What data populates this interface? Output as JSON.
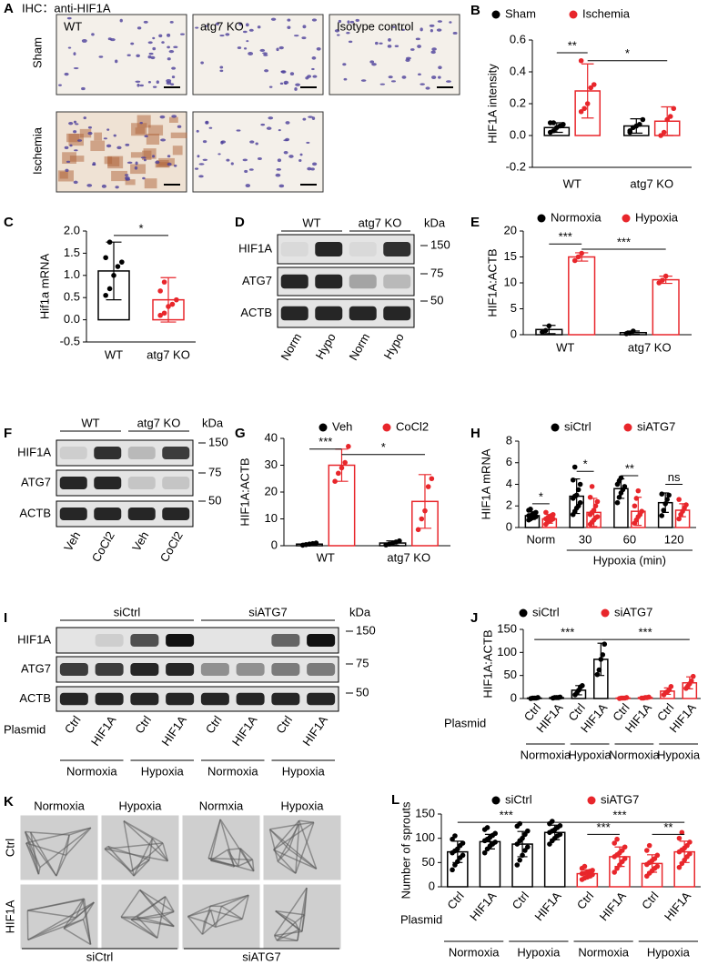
{
  "panels": {
    "a": {
      "letter": "A",
      "title": "IHC：anti-HIF1A",
      "row_labels": [
        "Sham",
        "Ischemia"
      ],
      "image_labels": [
        "WT",
        "atg7 KO",
        "Isotype  control"
      ]
    },
    "d": {
      "letter": "D",
      "groups": [
        "WT",
        "atg7 KO"
      ],
      "unit": "kDa",
      "rows": [
        "HIF1A",
        "ATG7",
        "ACTB"
      ],
      "markers": [
        150,
        75,
        50
      ],
      "lanes": [
        "Norm",
        "Hypo",
        "Norm",
        "Hypo"
      ]
    },
    "f": {
      "letter": "F",
      "groups": [
        "WT",
        "atg7 KO"
      ],
      "unit": "kDa",
      "rows": [
        "HIF1A",
        "ATG7",
        "ACTB"
      ],
      "markers": [
        150,
        75,
        50
      ],
      "lanes": [
        "Veh",
        "CoCl2",
        "Veh",
        "CoCl2"
      ]
    },
    "i": {
      "letter": "I",
      "groups": [
        "siCtrl",
        "siATG7"
      ],
      "unit": "kDa",
      "rows": [
        "HIF1A",
        "ATG7",
        "ACTB"
      ],
      "markers": [
        150,
        75,
        50
      ],
      "lanes": [
        "Ctrl",
        "HIF1A",
        "Ctrl",
        "HIF1A",
        "Ctrl",
        "HIF1A",
        "Ctrl",
        "HIF1A"
      ],
      "lane_title": "Plasmid",
      "conditions": [
        "Normoxia",
        "Hypoxia",
        "Normoxia",
        "Hypoxia"
      ]
    },
    "k": {
      "letter": "K",
      "columns": [
        "Normoxia",
        "Hypoxia",
        "Normxia",
        "Hypoxia"
      ],
      "row_labels": [
        "Ctrl",
        "HIF1A"
      ],
      "groups": [
        "siCtrl",
        "siATG7"
      ]
    }
  },
  "chart_data": [
    {
      "panel": "B",
      "type": "bar",
      "y_label": "HIF1A intensity",
      "categories": [
        "WT",
        "atg7 KO"
      ],
      "series": [
        {
          "name": "Sham",
          "color": "#000000",
          "values": [
            0.05,
            0.06
          ],
          "errors": [
            0.03,
            0.045
          ],
          "points": [
            [
              0.02,
              0.03,
              0.05,
              0.06,
              0.07,
              0.08,
              0.08
            ],
            [
              0.03,
              0.05,
              0.06,
              0.07,
              0.1,
              0.02
            ]
          ]
        },
        {
          "name": "Ischemia",
          "color": "#e8262b",
          "values": [
            0.28,
            0.09
          ],
          "errors": [
            0.17,
            0.09
          ],
          "points": [
            [
              0.15,
              0.17,
              0.2,
              0.3,
              0.32,
              0.47
            ],
            [
              0,
              0.02,
              0.1,
              0.12,
              0.17
            ]
          ]
        }
      ],
      "ylim": [
        -0.2,
        0.6
      ],
      "yticks": [
        -0.2,
        {
          "value": 0,
          "label": "0.0"
        },
        0.2,
        0.4,
        0.6
      ],
      "brackets": [
        {
          "label": "**",
          "y": 0.52,
          "from": 0,
          "to": 1
        },
        {
          "label": "*",
          "y": 0.47,
          "from": 1,
          "to": 3
        }
      ]
    },
    {
      "panel": "C",
      "type": "bar",
      "y_label": "Hif1a mRNA",
      "categories": [
        "WT",
        "atg7 KO"
      ],
      "values": [
        1.1,
        0.45
      ],
      "errors": [
        0.65,
        0.5
      ],
      "colors": [
        "#000000",
        "#e8262b"
      ],
      "points": [
        [
          0.55,
          0.7,
          1,
          1.2,
          1.3,
          1.4,
          1.75
        ],
        [
          0.1,
          0.15,
          0.3,
          0.35,
          0.45,
          0.65,
          0.85
        ]
      ],
      "ylim": [
        -0.5,
        2
      ],
      "yticks": [
        -0.5,
        {
          "value": 0,
          "label": "0.0"
        },
        0.5,
        {
          "value": 1,
          "label": "1.0"
        },
        1.5,
        {
          "value": 2,
          "label": "2.0"
        }
      ],
      "brackets": [
        {
          "label": "*",
          "y": 1.9,
          "from": 0,
          "to": 1
        }
      ]
    },
    {
      "panel": "E",
      "type": "bar",
      "y_label": "HIF1A:ACTB",
      "categories": [
        "WT",
        "atg7 KO"
      ],
      "series": [
        {
          "name": "Normoxia",
          "color": "#000000",
          "values": [
            1,
            0.4
          ],
          "errors": [
            0.8,
            0.3
          ],
          "points": [
            [
              0.5,
              0.8,
              1.7
            ],
            [
              0.2,
              0.3,
              0.7
            ]
          ]
        },
        {
          "name": "Hypoxia",
          "color": "#e8262b",
          "values": [
            15,
            10.6
          ],
          "errors": [
            0.8,
            0.7
          ],
          "points": [
            [
              14.3,
              15,
              15.7
            ],
            [
              10,
              10.5,
              11.3
            ]
          ]
        }
      ],
      "ylim": [
        0,
        20
      ],
      "yticks": [
        0,
        5,
        10,
        15,
        20
      ],
      "brackets": [
        {
          "label": "***",
          "y": 17.5,
          "from": 0,
          "to": 1
        },
        {
          "label": "***",
          "y": 16.5,
          "from": 1,
          "to": 3
        }
      ]
    },
    {
      "panel": "G",
      "type": "bar",
      "y_label": "HIF1A:ACTB",
      "categories": [
        "WT",
        "atg7 KO"
      ],
      "series": [
        {
          "name": "Veh",
          "color": "#000000",
          "values": [
            0.6,
            1
          ],
          "errors": [
            0.3,
            0.8
          ],
          "points": [
            [
              0.2,
              0.4,
              0.6,
              0.8,
              1
            ],
            [
              0.3,
              0.6,
              1,
              1.4,
              1.8
            ]
          ]
        },
        {
          "name": "CoCl2",
          "color": "#e8262b",
          "values": [
            30,
            16.5
          ],
          "errors": [
            6,
            10
          ],
          "points": [
            [
              24,
              27,
              29,
              31,
              37
            ],
            [
              6,
              10,
              13,
              22,
              25
            ]
          ]
        }
      ],
      "ylim": [
        0,
        40
      ],
      "yticks": [
        0,
        10,
        20,
        30,
        40
      ],
      "brackets": [
        {
          "label": "***",
          "y": 36,
          "from": 0,
          "to": 1
        },
        {
          "label": "*",
          "y": 34,
          "from": 1,
          "to": 3
        }
      ]
    },
    {
      "panel": "H",
      "type": "bar",
      "y_label": "HIF1A mRNA",
      "categories": [
        "Norm",
        "30",
        "60",
        "120"
      ],
      "x_group": {
        "label": "Hypoxia (min)",
        "from": 1,
        "to": 3
      },
      "series": [
        {
          "name": "siCtrl",
          "color": "#000000",
          "values": [
            1.1,
            2.9,
            3.6,
            2.3
          ],
          "errors": [
            0.35,
            1.6,
            0.9,
            0.9
          ],
          "points": [
            [
              0.7,
              0.8,
              0.9,
              1,
              1,
              1.1,
              1.1,
              1.2,
              1.3,
              1.4,
              1.6,
              1.7
            ],
            [
              1.2,
              1.5,
              1.8,
              2,
              2.3,
              2.7,
              2.9,
              3,
              3.5,
              4,
              4.4,
              5.6
            ],
            [
              2.3,
              2.8,
              3.2,
              3.5,
              3.8,
              4,
              4.3,
              4.6
            ],
            [
              1.1,
              1.6,
              2.2,
              2.6,
              3,
              3.1
            ]
          ]
        },
        {
          "name": "siATG7",
          "color": "#e8262b",
          "values": [
            0.8,
            1.4,
            1.5,
            1.6
          ],
          "errors": [
            0.4,
            1.3,
            1.3,
            0.6
          ],
          "points": [
            [
              0.3,
              0.5,
              0.6,
              0.7,
              0.8,
              0.8,
              0.9,
              1,
              1.1,
              1.2,
              1.4
            ],
            [
              0.3,
              0.5,
              0.7,
              0.9,
              1,
              1.2,
              1.4,
              1.6,
              2,
              2.4,
              2.8,
              3.8
            ],
            [
              0.4,
              0.7,
              1,
              1.2,
              1.5,
              2,
              2.7,
              3.4
            ],
            [
              0.8,
              1.2,
              1.5,
              1.8,
              2.1,
              2.6
            ]
          ]
        }
      ],
      "ylim": [
        0,
        8
      ],
      "yticks": [
        0,
        2,
        4,
        6,
        8
      ],
      "brackets": [
        {
          "label": "*",
          "y": 2.2,
          "from": 0,
          "to": 1
        },
        {
          "label": "*",
          "y": 5.2,
          "from": 2,
          "to": 3
        },
        {
          "label": "**",
          "y": 4.8,
          "from": 4,
          "to": 5
        },
        {
          "label": "ns",
          "y": 4,
          "from": 6,
          "to": 7
        }
      ]
    },
    {
      "panel": "J",
      "type": "bar",
      "y_label": "HIF1A:ACTB",
      "x_label": "Plasmid",
      "categories": [
        "Ctrl",
        "HIF1A",
        "Ctrl",
        "HIF1A",
        "Ctrl",
        "HIF1A",
        "Ctrl",
        "HIF1A"
      ],
      "groups": [
        {
          "label": "Normoxia",
          "from": 0,
          "to": 1
        },
        {
          "label": "Hypoxia",
          "from": 2,
          "to": 3
        },
        {
          "label": "Normoxia",
          "from": 4,
          "to": 5
        },
        {
          "label": "Hypoxia",
          "from": 6,
          "to": 7
        }
      ],
      "series": [
        {
          "name": "siCtrl",
          "color": "#000000",
          "values": [
            1,
            2,
            18,
            85,
            null,
            null,
            null,
            null
          ],
          "errors": [
            0.5,
            1,
            10,
            35,
            null,
            null,
            null,
            null
          ],
          "points": [
            [
              0,
              1,
              1,
              1,
              2
            ],
            [
              1,
              2,
              2,
              2,
              3
            ],
            [
              8,
              12,
              18,
              25,
              28
            ],
            [
              52,
              62,
              85,
              95,
              118
            ],
            null,
            null,
            null,
            null
          ]
        },
        {
          "name": "siATG7",
          "color": "#e8262b",
          "values": [
            null,
            null,
            null,
            null,
            1,
            2,
            16,
            34
          ],
          "errors": [
            null,
            null,
            null,
            null,
            0.5,
            1,
            7,
            13
          ],
          "points": [
            null,
            null,
            null,
            null,
            [
              0,
              1,
              1,
              1,
              2
            ],
            [
              1,
              1,
              2,
              2,
              3
            ],
            [
              8,
              13,
              15,
              19,
              26
            ],
            [
              22,
              27,
              32,
              38,
              48
            ]
          ]
        }
      ],
      "ylim": [
        0,
        150
      ],
      "yticks": [
        0,
        50,
        100,
        150
      ],
      "brackets": [
        {
          "label": "***",
          "y": 128,
          "from": 0,
          "to": 3
        },
        {
          "label": "***",
          "y": 128,
          "from": 3,
          "to": 7
        }
      ]
    },
    {
      "panel": "L",
      "type": "bar",
      "y_label": "Number of sprouts",
      "x_label": "Plasmid",
      "categories": [
        "Ctrl",
        "HIF1A",
        "Ctrl",
        "HIF1A",
        "Ctrl",
        "HIF1A",
        "Ctrl",
        "HIF1A"
      ],
      "groups": [
        {
          "label": "Normoxia",
          "from": 0,
          "to": 1
        },
        {
          "label": "Hypoxia",
          "from": 2,
          "to": 3
        },
        {
          "label": "Normoxia",
          "from": 4,
          "to": 5
        },
        {
          "label": "Hypoxia",
          "from": 6,
          "to": 7
        }
      ],
      "series": [
        {
          "name": "siCtrl",
          "color": "#000000",
          "values": [
            72,
            93,
            88,
            112,
            null,
            null,
            null,
            null
          ],
          "errors": [
            22,
            15,
            26,
            15,
            null,
            null,
            null,
            null
          ],
          "points": [
            [
              35,
              45,
              52,
              60,
              65,
              70,
              74,
              78,
              85,
              90,
              98,
              105
            ],
            [
              70,
              78,
              84,
              88,
              92,
              95,
              98,
              102,
              106,
              110,
              118,
              122
            ],
            [
              45,
              55,
              65,
              75,
              82,
              88,
              95,
              100,
              108,
              115,
              125,
              130
            ],
            [
              88,
              95,
              100,
              105,
              108,
              112,
              115,
              118,
              122,
              126,
              130,
              135
            ],
            null,
            null,
            null,
            null
          ]
        },
        {
          "name": "siATG7",
          "color": "#e8262b",
          "values": [
            null,
            null,
            null,
            null,
            27,
            62,
            48,
            72
          ],
          "errors": [
            null,
            null,
            null,
            null,
            8,
            20,
            18,
            22
          ],
          "points": [
            null,
            null,
            null,
            null,
            [
              15,
              18,
              20,
              22,
              25,
              27,
              28,
              30,
              32,
              34,
              38,
              42
            ],
            [
              30,
              38,
              45,
              52,
              58,
              62,
              66,
              70,
              75,
              82,
              90,
              98
            ],
            [
              22,
              28,
              33,
              38,
              42,
              46,
              50,
              54,
              58,
              65,
              75,
              85
            ],
            [
              40,
              48,
              55,
              62,
              68,
              72,
              76,
              80,
              85,
              92,
              100,
              112
            ]
          ]
        }
      ],
      "ylim": [
        0,
        150
      ],
      "yticks": [
        0,
        50,
        100,
        150
      ],
      "brackets": [
        {
          "label": "***",
          "y": 133,
          "from": 0,
          "to": 3
        },
        {
          "label": "***",
          "y": 133,
          "from": 3,
          "to": 7
        },
        {
          "label": "***",
          "y": 108,
          "from": 4,
          "to": 5
        },
        {
          "label": "**",
          "y": 108,
          "from": 6,
          "to": 7
        }
      ]
    }
  ]
}
